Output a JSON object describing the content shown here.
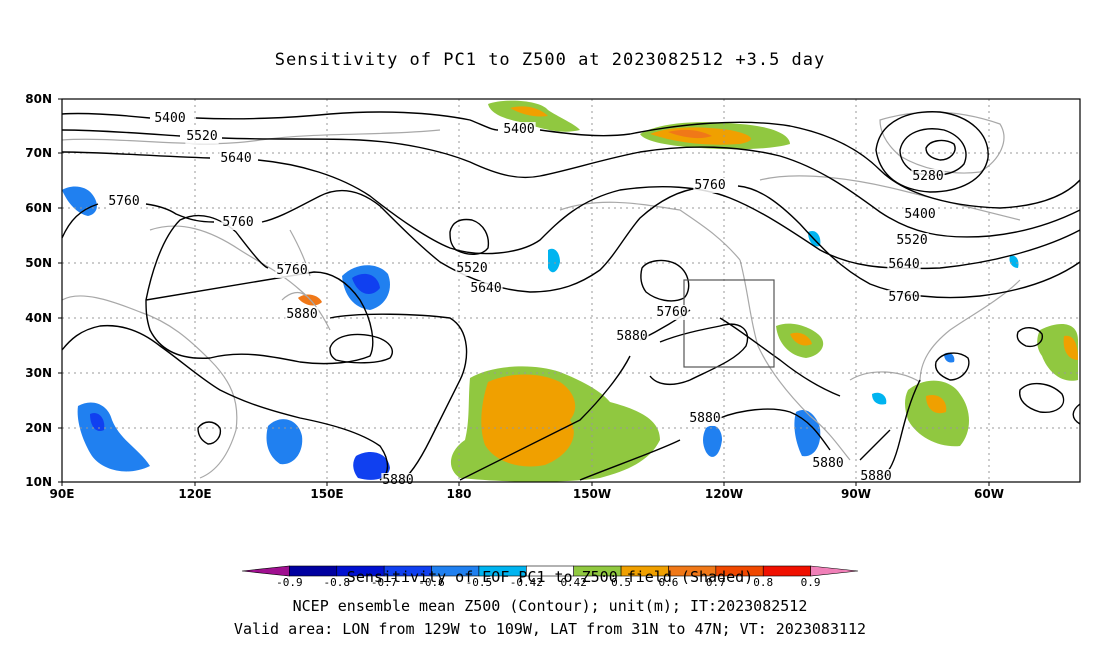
{
  "title": "Sensitivity of PC1 to Z500 at 2023082512 +3.5 day",
  "footer": {
    "line1": "Sensitivity of EOF PC1 to Z500 field (Shaded)",
    "line2": "NCEP ensemble mean Z500 (Contour); unit(m); IT:2023082512",
    "line3": "Valid area: LON from 129W to 109W, LAT from 31N to 47N; VT: 2023083112"
  },
  "axes": {
    "lat_labels": [
      "80N",
      "70N",
      "60N",
      "50N",
      "40N",
      "30N",
      "20N",
      "10N"
    ],
    "lon_labels": [
      "90E",
      "120E",
      "150E",
      "180",
      "150W",
      "120W",
      "90W",
      "60W"
    ]
  },
  "contour_labels": [
    {
      "text": "5400"
    },
    {
      "text": "5520"
    },
    {
      "text": "5640"
    },
    {
      "text": "5760"
    },
    {
      "text": "5760"
    },
    {
      "text": "5760"
    },
    {
      "text": "5880"
    },
    {
      "text": "5400"
    },
    {
      "text": "5520"
    },
    {
      "text": "5640"
    },
    {
      "text": "5760"
    },
    {
      "text": "5880"
    },
    {
      "text": "5880"
    },
    {
      "text": "5760"
    },
    {
      "text": "5280"
    },
    {
      "text": "5400"
    },
    {
      "text": "5520"
    },
    {
      "text": "5640"
    },
    {
      "text": "5760"
    },
    {
      "text": "5880"
    },
    {
      "text": "5880"
    },
    {
      "text": "5880"
    }
  ],
  "colorbar": {
    "labels": [
      "-0.9",
      "-0.8",
      "-0.7",
      "-0.6",
      "-0.5",
      "-0.42",
      "0.42",
      "0.5",
      "0.6",
      "0.7",
      "0.8",
      "0.9"
    ],
    "colors": [
      "#a01090",
      "#0000a0",
      "#0010d0",
      "#1040f0",
      "#2080f0",
      "#00b4f0",
      "#ffffff",
      "#90c840",
      "#f0a000",
      "#f07818",
      "#f04800",
      "#f01000",
      "#f080b8"
    ]
  },
  "valid_area": {
    "lon": [
      -129,
      -109
    ],
    "lat": [
      31,
      47
    ]
  }
}
